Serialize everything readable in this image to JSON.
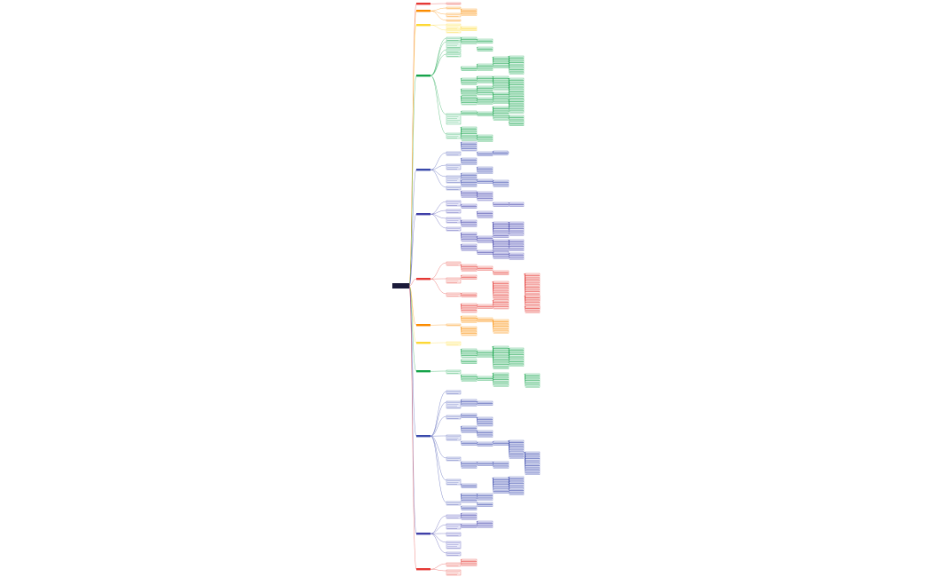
{
  "root": {
    "label": ""
  },
  "colors": {
    "red": "#e53935",
    "orange": "#fb8c00",
    "yellow": "#fdd835",
    "green": "#16a34a",
    "blue": "#3949ab",
    "indigo": "#3f3fa8",
    "line": "#9a9ab0"
  },
  "branches": [
    {
      "color": "red"
    },
    {
      "color": "orange"
    },
    {
      "color": "yellow"
    },
    {
      "color": "green"
    },
    {
      "color": "green"
    },
    {
      "color": "blue"
    },
    {
      "color": "indigo"
    },
    {
      "color": "red"
    },
    {
      "color": "orange"
    },
    {
      "color": "yellow"
    },
    {
      "color": "green"
    },
    {
      "color": "blue"
    },
    {
      "color": "indigo"
    },
    {
      "color": "red"
    }
  ]
}
